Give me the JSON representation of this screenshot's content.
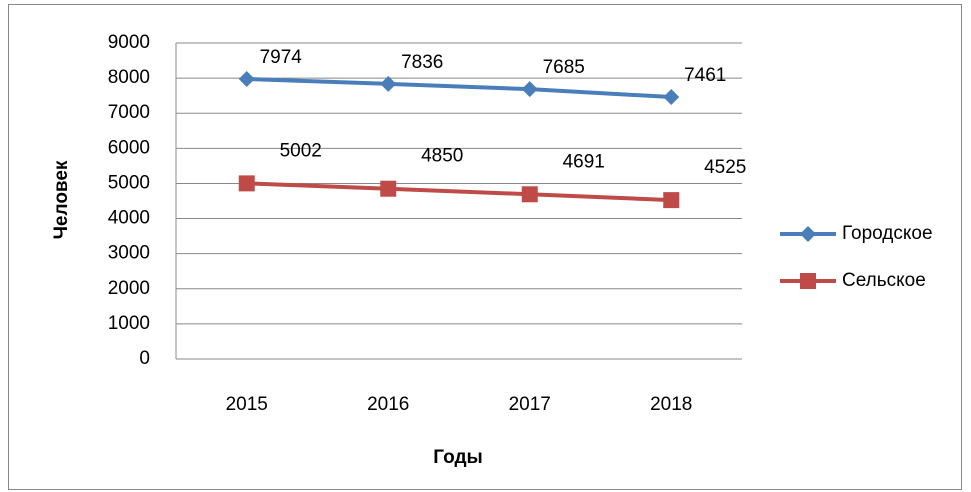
{
  "chart_data": {
    "type": "line",
    "x_label": "Годы",
    "y_label": "Человек",
    "categories": [
      "2015",
      "2016",
      "2017",
      "2018"
    ],
    "series": [
      {
        "name": "Городское",
        "color": "#4a7ebb",
        "marker": "diamond",
        "values": [
          7974,
          7836,
          7685,
          7461
        ]
      },
      {
        "name": "Сельское",
        "color": "#be4b48",
        "marker": "square",
        "values": [
          5002,
          4850,
          4691,
          4525
        ]
      }
    ],
    "ylim": [
      0,
      9000
    ],
    "yticks": [
      0,
      1000,
      2000,
      3000,
      4000,
      5000,
      6000,
      7000,
      8000,
      9000
    ],
    "grid": true,
    "legend": "right",
    "data_labels": true
  }
}
